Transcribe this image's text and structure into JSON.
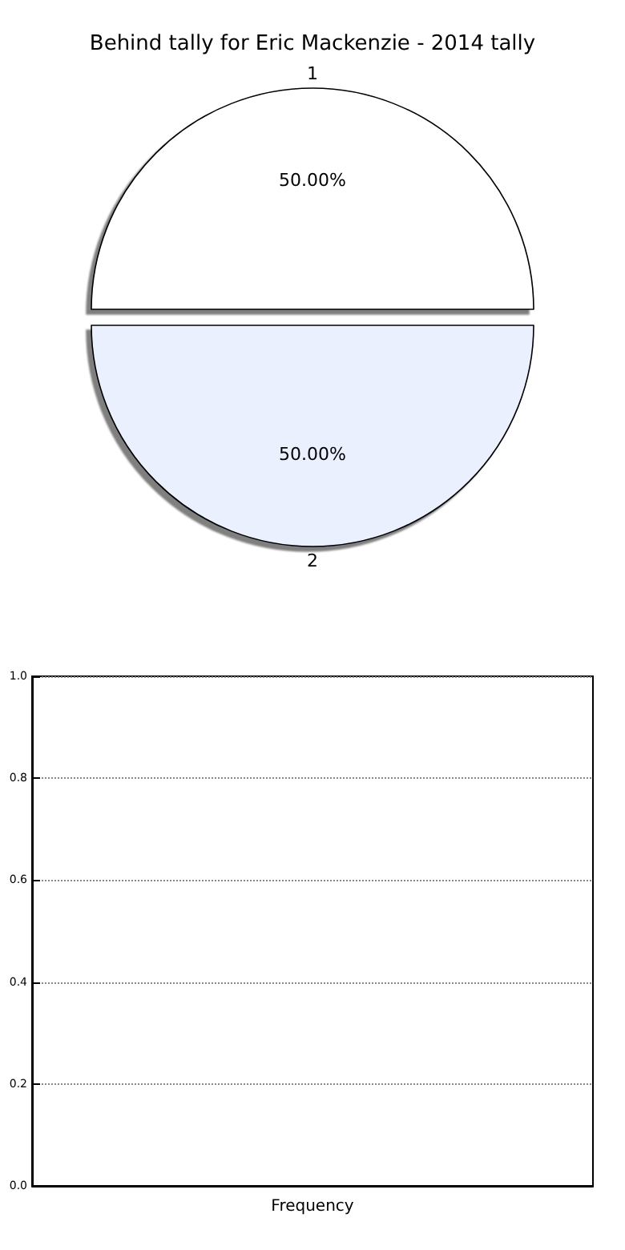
{
  "chart_data": [
    {
      "type": "pie",
      "title": "Behind tally for Eric Mackenzie - 2014 tally",
      "categories": [
        "1",
        "2"
      ],
      "values": [
        50,
        50
      ],
      "colors": [
        "#ffffff",
        "#eaf0fe"
      ],
      "value_labels": [
        "50.00%",
        "50.00%"
      ]
    },
    {
      "type": "bar",
      "categories": [
        "Frequency"
      ],
      "values": [
        null
      ],
      "ylim": [
        0,
        1
      ],
      "yticks": [
        {
          "value": 0,
          "label": "0.0"
        },
        {
          "value": 0.2,
          "label": "0.2"
        },
        {
          "value": 0.4,
          "label": "0.4"
        },
        {
          "value": 0.6,
          "label": "0.6"
        },
        {
          "value": 0.8,
          "label": "0.8"
        },
        {
          "value": 1,
          "label": "1.0"
        }
      ],
      "grid": "y"
    }
  ]
}
